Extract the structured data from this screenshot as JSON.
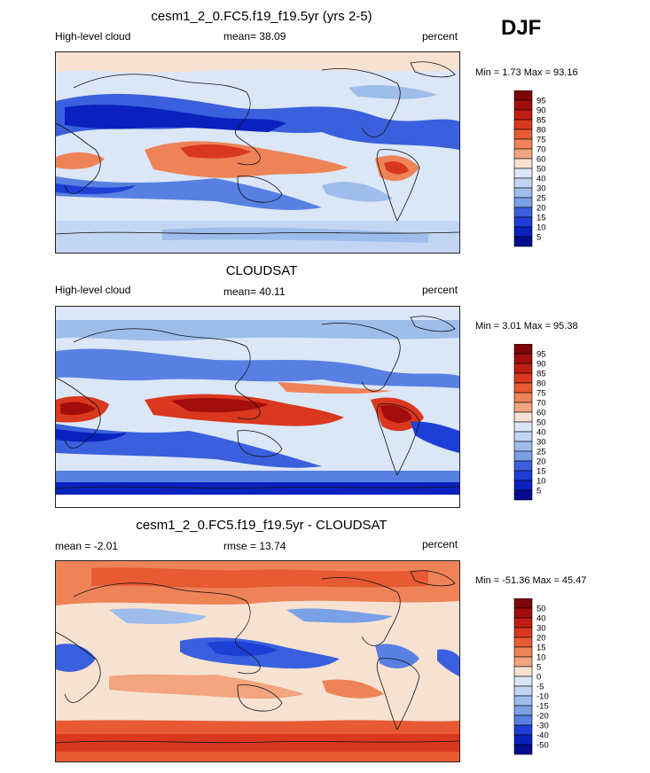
{
  "season": "DJF",
  "colors": {
    "pos": [
      "#f7e2d2",
      "#f5c7a8",
      "#f2a57f",
      "#ee8358",
      "#e85a33",
      "#d9381e",
      "#c01e13",
      "#a30d0d",
      "#7d0505"
    ],
    "neg": [
      "#dbe6f6",
      "#c2d5f2",
      "#9ebdeb",
      "#7aa0e6",
      "#5880e3",
      "#3a60de",
      "#1d3fd6",
      "#0a21bf",
      "#040c8f"
    ]
  },
  "panels": [
    {
      "title": "cesm1_2_0.FC5.f19_f19.5yr (yrs 2-5)",
      "left": "High-level cloud",
      "center": "mean=  38.09",
      "right": "percent",
      "minmax": "Min =   1.73 Max =  93.16"
    },
    {
      "title": "CLOUDSAT",
      "left": "High-level cloud",
      "center": "mean=  40.11",
      "right": "percent",
      "minmax": "Min =   3.01 Max =  95.38"
    },
    {
      "title": "cesm1_2_0.FC5.f19_f19.5yr - CLOUDSAT",
      "left": "mean =  -2.01",
      "center": "rmse =  13.74",
      "right": "percent",
      "minmax": "Min = -51.36 Max =  45.47"
    }
  ],
  "chart_data": [
    {
      "type": "heatmap",
      "title": "cesm1_2_0.FC5.f19_f19.5yr (yrs 2-5)",
      "variable": "High-level cloud",
      "units": "percent",
      "mean": 38.09,
      "min": 1.73,
      "max": 93.16,
      "colorbar_levels": [
        "95",
        "90",
        "85",
        "80",
        "75",
        "70",
        "60",
        "50",
        "40",
        "30",
        "25",
        "20",
        "15",
        "10",
        "5"
      ],
      "colorbar_colors": [
        "#7d0505",
        "#a30d0d",
        "#c01e13",
        "#d9381e",
        "#e85a33",
        "#ee8358",
        "#f2a57f",
        "#f7e2d2",
        "#dbe6f6",
        "#c2d5f2",
        "#9ebdeb",
        "#7aa0e6",
        "#3a60de",
        "#1d3fd6",
        "#0a21bf",
        "#040c8f"
      ]
    },
    {
      "type": "heatmap",
      "title": "CLOUDSAT",
      "variable": "High-level cloud",
      "units": "percent",
      "mean": 40.11,
      "min": 3.01,
      "max": 95.38,
      "colorbar_levels": [
        "95",
        "90",
        "85",
        "80",
        "75",
        "70",
        "60",
        "50",
        "40",
        "30",
        "25",
        "20",
        "15",
        "10",
        "5"
      ],
      "colorbar_colors": [
        "#7d0505",
        "#a30d0d",
        "#c01e13",
        "#d9381e",
        "#e85a33",
        "#ee8358",
        "#f2a57f",
        "#f7e2d2",
        "#dbe6f6",
        "#c2d5f2",
        "#9ebdeb",
        "#7aa0e6",
        "#3a60de",
        "#1d3fd6",
        "#0a21bf",
        "#040c8f"
      ]
    },
    {
      "type": "heatmap",
      "title": "cesm1_2_0.FC5.f19_f19.5yr - CLOUDSAT",
      "units": "percent",
      "mean": -2.01,
      "rmse": 13.74,
      "min": -51.36,
      "max": 45.47,
      "colorbar_levels": [
        "50",
        "40",
        "30",
        "20",
        "15",
        "10",
        "5",
        "0",
        "-5",
        "-10",
        "-15",
        "-20",
        "-30",
        "-40",
        "-50"
      ],
      "colorbar_colors": [
        "#7d0505",
        "#a30d0d",
        "#c01e13",
        "#d9381e",
        "#e85a33",
        "#ee8358",
        "#f2a57f",
        "#f7e2d2",
        "#dbe6f6",
        "#c2d5f2",
        "#9ebdeb",
        "#7aa0e6",
        "#5880e3",
        "#1d3fd6",
        "#0a21bf",
        "#040c8f"
      ]
    }
  ]
}
